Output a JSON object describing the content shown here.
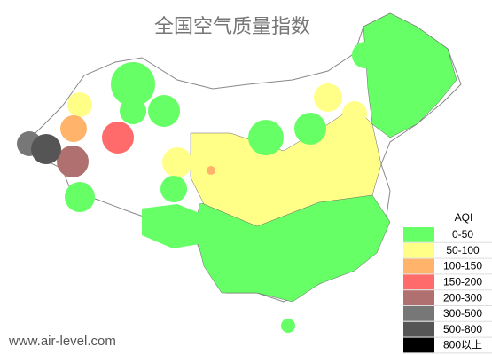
{
  "title": "全国空气质量指数",
  "legend": {
    "title": "AQI",
    "items": [
      {
        "label": "0-50",
        "color": "#66ff66"
      },
      {
        "label": "50-100",
        "color": "#ffff88"
      },
      {
        "label": "100-150",
        "color": "#ffb36b"
      },
      {
        "label": "150-200",
        "color": "#ff6b6b"
      },
      {
        "label": "200-300",
        "color": "#b07070"
      },
      {
        "label": "300-500",
        "color": "#777777"
      },
      {
        "label": "500-800",
        "color": "#555555"
      },
      {
        "label": "800以上",
        "color": "#000000"
      }
    ]
  },
  "watermark": "www.air-level.com"
}
